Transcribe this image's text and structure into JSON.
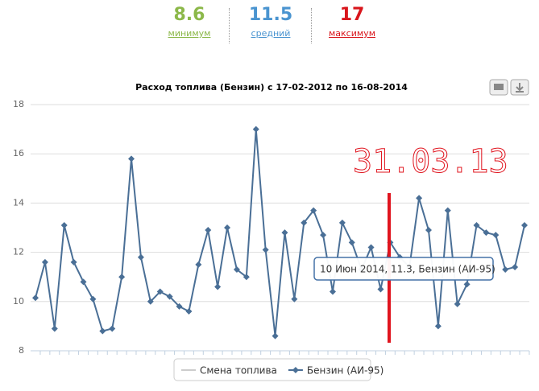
{
  "stats": [
    {
      "value": 8.6,
      "label": "минимум"
    },
    {
      "value": 11.5,
      "label": "средний"
    },
    {
      "value": 17,
      "label": "максимум"
    }
  ],
  "chart_data": {
    "type": "line",
    "title": "Расход топлива (Бензин) с 17-02-2012 по 16-08-2014",
    "annotation": "31.03.13",
    "tooltip": "10 Июн 2014, 11.3, Бензин (АИ-95)",
    "series": [
      {
        "name": "Смена топлива",
        "color": "#cccccc",
        "values": []
      },
      {
        "name": "Бензин (АИ-95)",
        "color": "#4a6f96",
        "values": [
          10.15,
          11.6,
          8.9,
          13.1,
          11.6,
          10.8,
          10.1,
          8.8,
          8.9,
          11.0,
          15.8,
          11.8,
          10.0,
          10.4,
          10.2,
          9.8,
          9.6,
          11.5,
          12.9,
          10.6,
          13.0,
          11.3,
          11.0,
          17.0,
          12.1,
          8.6,
          12.8,
          10.1,
          13.2,
          13.7,
          12.7,
          10.4,
          13.2,
          12.4,
          11.3,
          12.2,
          10.5,
          12.4,
          11.8,
          11.4,
          14.2,
          12.9,
          9.0,
          13.7,
          9.9,
          10.7,
          13.1,
          12.8,
          12.7,
          11.3,
          11.4,
          13.1
        ]
      }
    ],
    "ylim": [
      8,
      18
    ],
    "yticks": [
      8,
      10,
      12,
      14,
      16,
      18
    ],
    "grid": true
  }
}
